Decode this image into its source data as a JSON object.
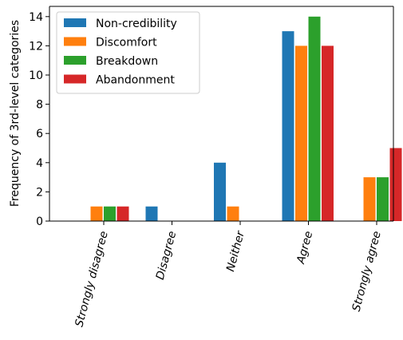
{
  "chart_data": {
    "type": "bar",
    "ylabel": "Frequency of 3rd-level categories",
    "xlabel": "",
    "ylim": [
      0,
      14.7
    ],
    "yticks": [
      0,
      2,
      4,
      6,
      8,
      10,
      12,
      14
    ],
    "grid": false,
    "legend_position": "top-left",
    "categories": [
      "Strongly disagree",
      "Disagree",
      "Neither",
      "Agree",
      "Strongly agree"
    ],
    "series": [
      {
        "name": "Non-credibility",
        "color": "#1f77b4",
        "values": [
          0,
          1,
          4,
          13,
          0
        ]
      },
      {
        "name": "Discomfort",
        "color": "#ff7f0e",
        "values": [
          1,
          0,
          1,
          12,
          3
        ]
      },
      {
        "name": "Breakdown",
        "color": "#2ca02c",
        "values": [
          1,
          0,
          0,
          14,
          3
        ]
      },
      {
        "name": "Abandonment",
        "color": "#d62728",
        "values": [
          1,
          0,
          0,
          12,
          5
        ]
      }
    ]
  }
}
